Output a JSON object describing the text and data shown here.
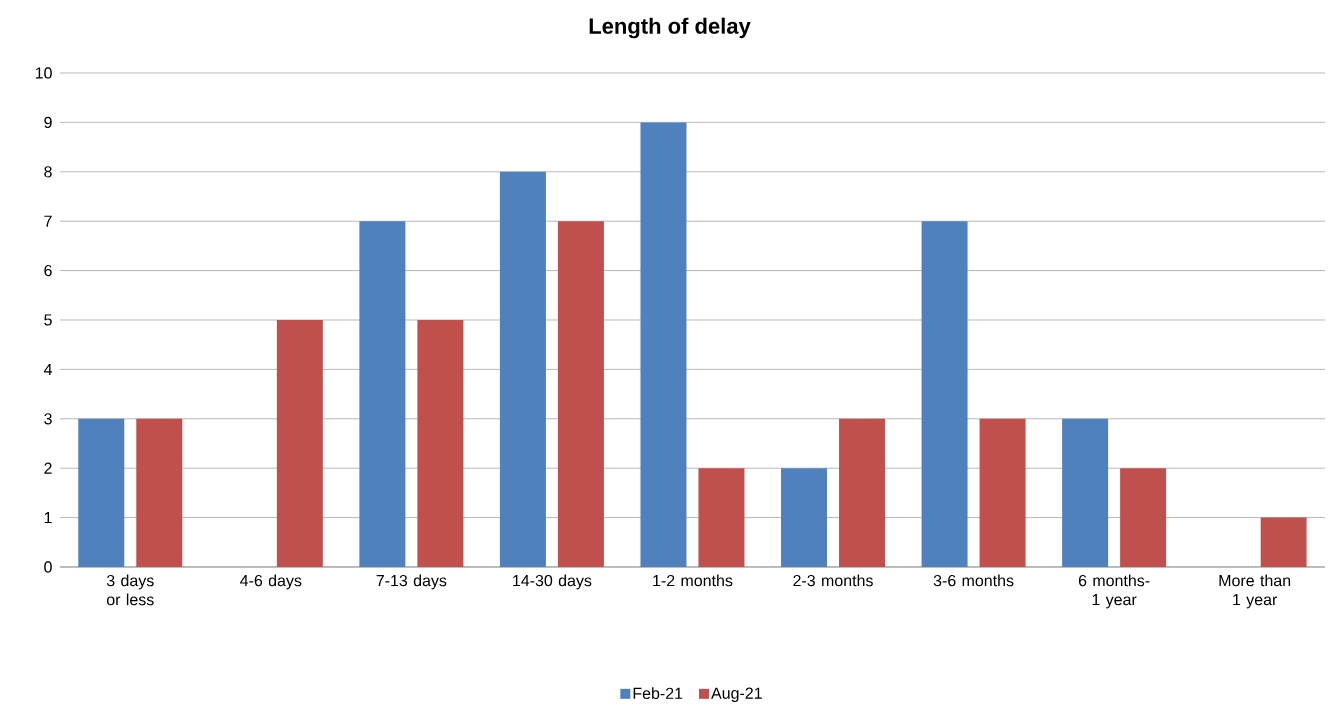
{
  "chart_data": {
    "type": "bar",
    "title": "Length of delay",
    "categories": [
      "3 days or less",
      "4-6 days",
      "7-13 days",
      "14-30 days",
      "1-2 months",
      "2-3 months",
      "3-6 months",
      "6 months-1 year",
      "More than 1 year"
    ],
    "series": [
      {
        "name": "Feb-21",
        "color": "#4f81bd",
        "values": [
          3,
          0,
          7,
          8,
          9,
          2,
          7,
          3,
          0
        ]
      },
      {
        "name": "Aug-21",
        "color": "#c0504d",
        "values": [
          3,
          5,
          5,
          7,
          2,
          3,
          3,
          2,
          1
        ]
      }
    ],
    "ylim": [
      0,
      10
    ],
    "yticks": [
      0,
      1,
      2,
      3,
      4,
      5,
      6,
      7,
      8,
      9,
      10
    ],
    "grid": "y",
    "legend": "bottom"
  }
}
